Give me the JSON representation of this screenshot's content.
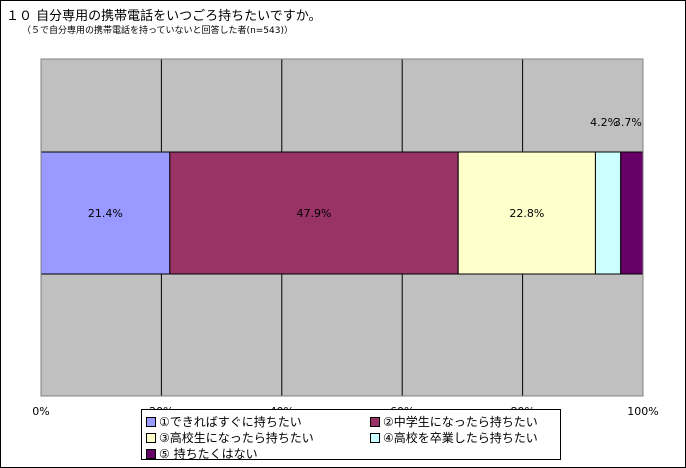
{
  "title": "１０  自分専用の携帯電話をいつごろ持ちたいですか。",
  "subtitle": "（５で自分専用の携帯電話を持っていないと回答した者(n=543)）",
  "chart_data": {
    "type": "bar",
    "orientation": "horizontal",
    "stacked": true,
    "percent": true,
    "xlim": [
      0,
      100
    ],
    "x_ticks": [
      "0%",
      "20%",
      "40%",
      "60%",
      "80%",
      "100%"
    ],
    "grid": true,
    "legend_position": "bottom",
    "series": [
      {
        "name": "①できればすぐに持ちたい",
        "value": 21.4,
        "label": "21.4%",
        "color": "#9999FF"
      },
      {
        "name": "②中学生になったら持ちたい",
        "value": 47.9,
        "label": "47.9%",
        "color": "#993366"
      },
      {
        "name": "③高校生になったら持ちたい",
        "value": 22.8,
        "label": "22.8%",
        "color": "#FFFFCC"
      },
      {
        "name": "④高校を卒業したら持ちたい",
        "value": 4.2,
        "label": "4.2%",
        "color": "#CCFFFF"
      },
      {
        "name": "⑤ 持ちたくはない",
        "value": 3.7,
        "label": "3.7%",
        "color": "#660066"
      }
    ]
  },
  "colors": {
    "plot_background": "#C0C0C0",
    "gridline": "#000000"
  }
}
